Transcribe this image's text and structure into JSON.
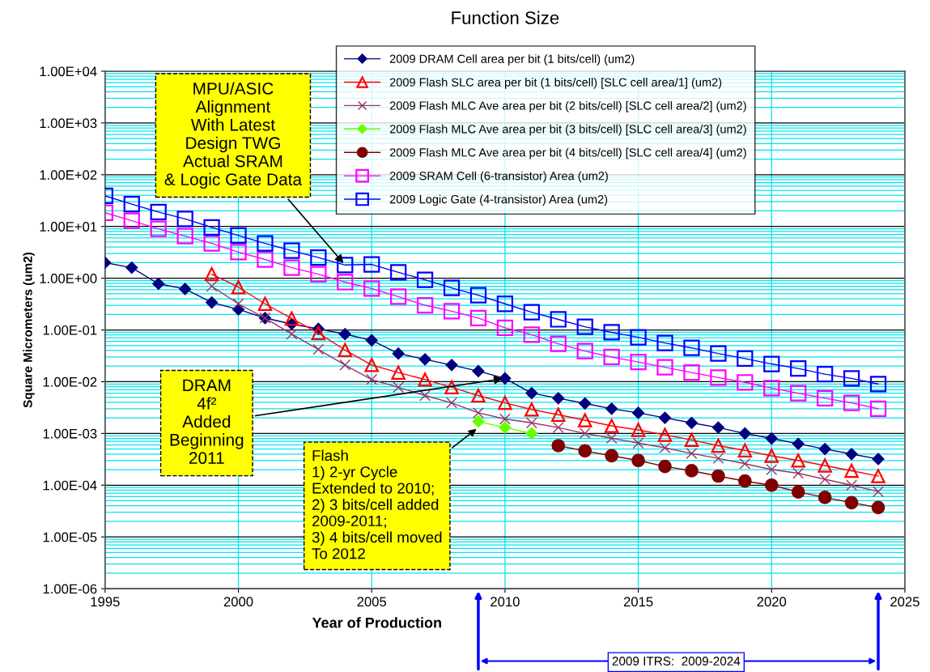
{
  "chart_data": {
    "type": "line",
    "title": "Function Size",
    "xlabel": "Year of Production",
    "ylabel": "Square Micrometers (um2)",
    "log": "y",
    "grid": true,
    "legend": "top right",
    "xlim": [
      1995,
      2025
    ],
    "xticks": [
      1995,
      2000,
      2005,
      2010,
      2015,
      2020,
      2025
    ],
    "ylim": [
      1e-06,
      10000
    ],
    "yticks": [
      {
        "value": 1e-06,
        "label": "1.00E-06"
      },
      {
        "value": 1e-05,
        "label": "1.00E-05"
      },
      {
        "value": 0.0001,
        "label": "1.00E-04"
      },
      {
        "value": 0.001,
        "label": "1.00E-03"
      },
      {
        "value": 0.01,
        "label": "1.00E-02"
      },
      {
        "value": 0.1,
        "label": "1.00E-01"
      },
      {
        "value": 1,
        "label": "1.00E+00"
      },
      {
        "value": 10,
        "label": "1.00E+01"
      },
      {
        "value": 100,
        "label": "1.00E+02"
      },
      {
        "value": 1000,
        "label": "1.00E+03"
      },
      {
        "value": 10000,
        "label": "1.00E+04"
      }
    ],
    "series": [
      {
        "name": "2009 DRAM Cell area per bit (1 bits/cell) (um2)",
        "color": "#000080",
        "marker": "diamond",
        "x": [
          1995,
          1996,
          1997,
          1998,
          1999,
          2000,
          2001,
          2002,
          2003,
          2004,
          2005,
          2006,
          2007,
          2008,
          2009,
          2010,
          2011,
          2012,
          2013,
          2014,
          2015,
          2016,
          2017,
          2018,
          2019,
          2020,
          2021,
          2022,
          2023,
          2024
        ],
        "values": [
          2.0,
          1.6,
          0.78,
          0.62,
          0.34,
          0.25,
          0.17,
          0.13,
          0.105,
          0.083,
          0.063,
          0.035,
          0.027,
          0.021,
          0.016,
          0.0116,
          0.006,
          0.0048,
          0.0038,
          0.003,
          0.0025,
          0.002,
          0.0016,
          0.0013,
          0.001,
          0.0008,
          0.00063,
          0.0005,
          0.0004,
          0.00032
        ]
      },
      {
        "name": "2009 Flash SLC area per bit (1 bits/cell) [SLC cell area/1] (um2)",
        "color": "#ff0000",
        "marker": "triangle",
        "x": [
          1999,
          2000,
          2001,
          2002,
          2003,
          2004,
          2005,
          2006,
          2007,
          2008,
          2009,
          2010,
          2011,
          2012,
          2013,
          2014,
          2015,
          2016,
          2017,
          2018,
          2019,
          2020,
          2021,
          2022,
          2023,
          2024
        ],
        "values": [
          1.2,
          0.67,
          0.32,
          0.166,
          0.087,
          0.041,
          0.021,
          0.015,
          0.011,
          0.0078,
          0.0054,
          0.0039,
          0.0029,
          0.0023,
          0.0018,
          0.0014,
          0.00117,
          0.00094,
          0.00075,
          0.00058,
          0.00047,
          0.00037,
          0.0003,
          0.00024,
          0.00019,
          0.00015
        ]
      },
      {
        "name": "2009 Flash MLC Ave area per bit (2 bits/cell) [SLC cell area/2] (um2)",
        "color": "#993366",
        "marker": "cross",
        "x": [
          1999,
          2000,
          2001,
          2002,
          2003,
          2004,
          2005,
          2006,
          2007,
          2008,
          2009,
          2010,
          2011,
          2012,
          2013,
          2014,
          2015,
          2016,
          2017,
          2018,
          2019,
          2020,
          2021,
          2022,
          2023,
          2024
        ],
        "values": [
          0.7,
          0.32,
          0.17,
          0.083,
          0.042,
          0.021,
          0.011,
          0.0078,
          0.0054,
          0.0039,
          0.0025,
          0.0019,
          0.0016,
          0.0013,
          0.001,
          0.00081,
          0.00065,
          0.00053,
          0.00041,
          0.00033,
          0.00026,
          0.0002,
          0.00017,
          0.00013,
          0.0001,
          7.5e-05
        ]
      },
      {
        "name": "2009 Flash MLC Ave area per bit (3 bits/cell) [SLC cell area/3] (um2)",
        "color": "#66ff00",
        "marker": "diamond",
        "x": [
          2009,
          2010,
          2011
        ],
        "values": [
          0.0017,
          0.0013,
          0.001
        ]
      },
      {
        "name": "2009 Flash MLC Ave area per bit (4 bits/cell) [SLC cell area/4] (um2)",
        "color": "#800000",
        "marker": "circle",
        "x": [
          2012,
          2013,
          2014,
          2015,
          2016,
          2017,
          2018,
          2019,
          2020,
          2021,
          2022,
          2023,
          2024
        ],
        "values": [
          0.00058,
          0.00046,
          0.00037,
          0.0003,
          0.00023,
          0.00019,
          0.00015,
          0.00012,
          0.0001,
          7.4e-05,
          5.8e-05,
          4.6e-05,
          3.7e-05
        ]
      },
      {
        "name": "2009 SRAM Cell (6-transistor) Area (um2)",
        "color": "#ff00ff",
        "marker": "square",
        "x": [
          1995,
          1996,
          1997,
          1998,
          1999,
          2000,
          2001,
          2002,
          2003,
          2004,
          2005,
          2006,
          2007,
          2008,
          2009,
          2010,
          2011,
          2012,
          2013,
          2014,
          2015,
          2016,
          2017,
          2018,
          2019,
          2020,
          2021,
          2022,
          2023,
          2024
        ],
        "values": [
          18.4,
          12.9,
          9,
          6.5,
          4.7,
          3.2,
          2.3,
          1.6,
          1.2,
          0.84,
          0.63,
          0.44,
          0.3,
          0.23,
          0.17,
          0.11,
          0.081,
          0.054,
          0.039,
          0.03,
          0.024,
          0.019,
          0.015,
          0.012,
          0.0097,
          0.0075,
          0.006,
          0.0048,
          0.0039,
          0.003
        ]
      },
      {
        "name": "2009 Logic Gate (4-transistor) Area (um2)",
        "color": "#0000ff",
        "marker": "square",
        "x": [
          1995,
          1996,
          1997,
          1998,
          1999,
          2000,
          2001,
          2002,
          2003,
          2004,
          2005,
          2006,
          2007,
          2008,
          2009,
          2010,
          2011,
          2012,
          2013,
          2014,
          2015,
          2016,
          2017,
          2018,
          2019,
          2020,
          2021,
          2022,
          2023,
          2024
        ],
        "values": [
          39,
          27,
          19,
          14,
          9.6,
          6.7,
          4.7,
          3.4,
          2.5,
          1.8,
          1.85,
          1.3,
          0.93,
          0.65,
          0.47,
          0.32,
          0.22,
          0.16,
          0.115,
          0.09,
          0.072,
          0.056,
          0.045,
          0.035,
          0.028,
          0.022,
          0.018,
          0.014,
          0.0116,
          0.009
        ]
      }
    ],
    "annotations": [
      {
        "text": "MPU/ASIC\nAlignment\nWith Latest\nDesign TWG\nActual SRAM\n& Logic Gate Data",
        "x": 2004,
        "y": 1.8
      },
      {
        "text": "DRAM\n4f²\nAdded\nBeginning\n2011",
        "x": 2010,
        "y": 0.0116
      },
      {
        "text": "Flash\n1) 2-yr Cycle\nExtended to 2010;\n2) 3 bits/cell added\n2009-2011;\n3) 4 bits/cell moved\nTo 2012",
        "x": 2009,
        "y": 0.0013
      },
      "2009 ITRS:  2009-2024"
    ]
  }
}
